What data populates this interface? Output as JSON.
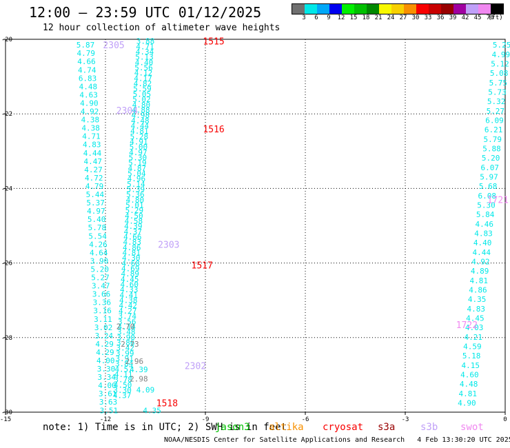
{
  "header": {
    "title": "12:00 – 23:59 UTC 01/12/2025",
    "subtitle": "12 hour collection of altimeter wave heights"
  },
  "legend": {
    "colors": [
      "#707070",
      "#00e8e8",
      "#00a8f8",
      "#0000f0",
      "#00f000",
      "#00c000",
      "#008800",
      "#f8f800",
      "#f8d000",
      "#f89000",
      "#f80000",
      "#c80000",
      "#980000",
      "#a000a0",
      "#c0a0f8",
      "#f088f0",
      "#000000"
    ],
    "labels": [
      "3",
      "6",
      "9",
      "12",
      "15",
      "18",
      "21",
      "24",
      "27",
      "30",
      "33",
      "36",
      "39",
      "42",
      "45",
      "70"
    ],
    "unit": "(ft)"
  },
  "note": {
    "text": "note: 1) Time is in UTC; 2) SWH is in feet"
  },
  "satellites": [
    {
      "name": "jason3",
      "color": "#00c000"
    },
    {
      "name": "altika",
      "color": "#f89000"
    },
    {
      "name": "cryosat",
      "color": "#f80000"
    },
    {
      "name": "s3a",
      "color": "#980000"
    },
    {
      "name": "s3b",
      "color": "#c0a0f8"
    },
    {
      "name": "swot",
      "color": "#f088f0"
    }
  ],
  "footer": {
    "credit": "NOAA/NESDIS Center for Satellite Applications and Research",
    "timestamp": "4 Feb 13:30:20 UTC 2025"
  },
  "chart_data": {
    "type": "scatter",
    "xlim": [
      -15,
      0
    ],
    "ylim": [
      -30,
      -20
    ],
    "xticks": [
      -15,
      -12,
      -9,
      -6,
      -3,
      0
    ],
    "yticks": [
      -20,
      -22,
      -24,
      -26,
      -28,
      -30
    ],
    "grid": true,
    "tracks": [
      {
        "name": "track-a",
        "color": "#00e8e8",
        "x_start": -12.6,
        "y_start": -20.15,
        "x_end": -11.9,
        "y_end": -29.95,
        "values": [
          "5.87",
          "4.79",
          "4.66",
          "4.74",
          "6.83",
          "4.48",
          "4.63",
          "4.90",
          "4.92",
          "4.38",
          "4.38",
          "4.71",
          "4.83",
          "4.44",
          "4.47",
          "4.27",
          "4.72",
          "4.79",
          "5.44",
          "5.37",
          "4.97",
          "5.40",
          "5.78",
          "5.54",
          "4.26",
          "4.64",
          "3.90",
          "5.20",
          "5.27",
          "3.47",
          "3.66",
          "3.36",
          "3.16",
          "3.11",
          "3.02",
          "3.24",
          "4.29",
          "4.29",
          "4.00",
          "3.30",
          "3.34",
          "4.00",
          "3.61",
          "3.63",
          "3.51"
        ]
      },
      {
        "name": "track-b",
        "color": "#00e8e8",
        "x_start": -10.8,
        "y_start": -20.05,
        "x_end": -11.5,
        "y_end": -29.55,
        "values": [
          "3.88",
          "4.71",
          "4.34",
          "5.13",
          "4.40",
          "5.56",
          "4.12",
          "4.17",
          "4.82",
          "5.59",
          "5.05",
          "5.02",
          "4.80",
          "4.88",
          "4.98",
          "4.48",
          "4.44",
          "4.81",
          "5.28",
          "4.91",
          "5.00",
          "4.97",
          "5.30",
          "5.19",
          "4.87",
          "5.04",
          "4.96",
          "5.14",
          "5.39",
          "5.36",
          "4.80",
          "5.01",
          "5.29",
          "4.50",
          "4.58",
          "4.39",
          "4.37",
          "4.66",
          "4.83",
          "4.86",
          "4.81",
          "4.30",
          "4.68",
          "4.69",
          "4.89",
          "4.45",
          "4.60",
          "4.33",
          "4.41",
          "4.38",
          "4.42",
          "4.27",
          "3.74",
          "3.56",
          "4.14",
          "3.48",
          "3.90",
          "3.86",
          "3.42",
          "3.99",
          "3.91",
          "3.84",
          "4.57",
          "4.11",
          "3.78",
          "4.50",
          "3.30",
          "4.37"
        ]
      },
      {
        "name": "track-c",
        "color": "#00e8e8",
        "x_start": -11.0,
        "y_start": -28.85,
        "x_end": -10.6,
        "y_end": -29.95,
        "values": [
          "4.39",
          "4.09",
          "4.35"
        ]
      },
      {
        "name": "track-d",
        "color": "#808080",
        "x_start": -11.4,
        "y_start": -27.7,
        "x_end": -11.0,
        "y_end": -29.1,
        "values": [
          "2.70",
          "2.73",
          "2.96",
          "2.98"
        ]
      },
      {
        "name": "track-e",
        "color": "#00e8e8",
        "x_start": -0.1,
        "y_start": -20.15,
        "x_end": -1.15,
        "y_end": -29.75,
        "values": [
          "5.25",
          "4.99",
          "5.12",
          "5.08",
          "5.75",
          "5.73",
          "5.32",
          "5.27",
          "6.09",
          "6.21",
          "5.79",
          "5.88",
          "5.20",
          "6.07",
          "5.97",
          "5.68",
          "6.08",
          "5.30",
          "5.84",
          "4.46",
          "4.83",
          "4.40",
          "4.44",
          "4.92",
          "4.89",
          "4.81",
          "4.86",
          "4.35",
          "4.83",
          "4.45",
          "4.03",
          "4.21",
          "4.59",
          "5.18",
          "4.15",
          "4.60",
          "4.48",
          "4.81",
          "4.90"
        ]
      }
    ],
    "pass_labels": [
      {
        "text": "2305",
        "x": -11.75,
        "y": -20.15,
        "color": "#c0a0f8"
      },
      {
        "text": "2304",
        "x": -11.35,
        "y": -21.9,
        "color": "#c0a0f8"
      },
      {
        "text": "2303",
        "x": -10.1,
        "y": -25.5,
        "color": "#c0a0f8"
      },
      {
        "text": "2302",
        "x": -9.3,
        "y": -28.75,
        "color": "#c0a0f8"
      },
      {
        "text": "1515",
        "x": -8.75,
        "y": -20.05,
        "color": "#f80000"
      },
      {
        "text": "1516",
        "x": -8.75,
        "y": -22.4,
        "color": "#f80000"
      },
      {
        "text": "1517",
        "x": -9.1,
        "y": -26.05,
        "color": "#f80000"
      },
      {
        "text": "1518",
        "x": -10.15,
        "y": -29.75,
        "color": "#f80000"
      },
      {
        "text": "1721",
        "x": 0.0,
        "y": -24.3,
        "color": "#f088f0"
      },
      {
        "text": "1722",
        "x": -1.15,
        "y": -27.65,
        "color": "#f088f0"
      }
    ]
  }
}
